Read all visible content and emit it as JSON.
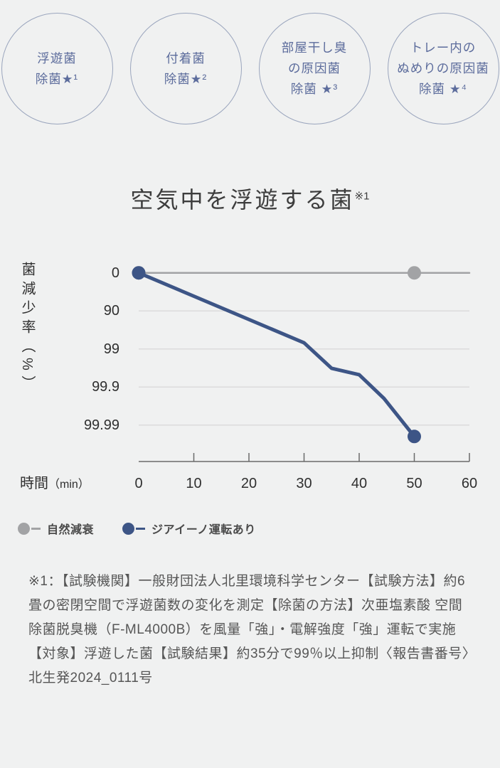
{
  "feature_badges": [
    {
      "lines": [
        "浮遊菌",
        "除菌★¹"
      ]
    },
    {
      "lines": [
        "付着菌",
        "除菌★²"
      ]
    },
    {
      "lines": [
        "部屋干し臭",
        "の原因菌",
        "除菌 ★³"
      ]
    },
    {
      "lines": [
        "トレー内の",
        "ぬめりの原因菌",
        "除菌 ★⁴"
      ]
    }
  ],
  "header": {
    "title": "空気中を浮遊する菌",
    "note": "※1"
  },
  "chart_data": {
    "type": "line",
    "title": "空気中を浮遊する菌※1",
    "x_axis": {
      "title": "時間",
      "unit": "（min）",
      "ticks": [
        0,
        10,
        20,
        30,
        40,
        50,
        60
      ],
      "range": [
        0,
        60
      ]
    },
    "y_axis": {
      "title": "菌減少率（%）",
      "scale": "log-reduction",
      "tick_labels": [
        "0",
        "90",
        "99",
        "99.9",
        "99.99"
      ],
      "tick_decades": [
        0,
        1,
        2,
        3,
        4
      ]
    },
    "grid": true,
    "legend_position": "bottom-left",
    "series": [
      {
        "name": "自然減衰",
        "color": "#a2a3a5",
        "stroke_width": 2.5,
        "points": [
          [
            0,
            0
          ],
          [
            60,
            0
          ]
        ],
        "markers": [
          [
            0,
            0
          ],
          [
            50,
            0
          ]
        ]
      },
      {
        "name": "ジアイーノ運転あり",
        "color": "#3d5586",
        "stroke_width": 5,
        "points": [
          [
            0,
            0
          ],
          [
            30,
            98.55
          ],
          [
            35,
            99.69
          ],
          [
            40,
            99.79
          ],
          [
            44.5,
            99.95
          ],
          [
            50,
            99.995
          ]
        ],
        "markers": [
          [
            0,
            0
          ],
          [
            50,
            99.995
          ]
        ]
      }
    ],
    "annotation": "約35分で99％以上抑制"
  },
  "footnote": {
    "text": "※1：【試験機関】一般財団法人北里環境科学センター【試験方法】約6畳の密閉空間で浮遊菌数の変化を測定【除菌の方法】次亜塩素酸 空間除菌脱臭機（F-ML4000B）を風量「強」・電解強度「強」運転で実施【対象】浮遊した菌【試験結果】約35分で99％以上抑制〈報告書番号〉北生発2024_0111号"
  },
  "colors": {
    "background": "#f0f1f1",
    "badge_text": "#5c6c9c",
    "badge_border": "#9aa5bd",
    "title_text": "#3d3d3d",
    "axis_text": "#2f2f2f",
    "gridline": "#dbdbdc",
    "axis_line": "#6a6a6a",
    "legend_text": "#4a4a4a",
    "footnote_text": "#565656",
    "series_natural_decay": "#a2a3a5",
    "series_ziaino": "#3d5586"
  }
}
